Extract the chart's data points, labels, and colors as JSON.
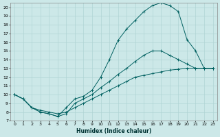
{
  "xlabel": "Humidex (Indice chaleur)",
  "xlim": [
    -0.5,
    23.5
  ],
  "ylim": [
    7,
    20.5
  ],
  "xticks": [
    0,
    1,
    2,
    3,
    4,
    5,
    6,
    7,
    8,
    9,
    10,
    11,
    12,
    13,
    14,
    15,
    16,
    17,
    18,
    19,
    20,
    21,
    22,
    23
  ],
  "yticks": [
    7,
    8,
    9,
    10,
    11,
    12,
    13,
    14,
    15,
    16,
    17,
    18,
    19,
    20
  ],
  "bg_color": "#cce8e8",
  "line_color": "#006060",
  "grid_color": "#b0d4d4",
  "lines": [
    {
      "x": [
        0,
        1,
        2,
        3,
        4,
        5,
        6,
        7,
        8,
        9,
        10,
        11,
        12,
        13,
        14,
        15,
        16,
        17,
        18,
        19,
        20,
        21,
        22,
        23
      ],
      "y": [
        10,
        9.5,
        8.5,
        8.2,
        8.0,
        7.8,
        8.0,
        8.5,
        9.0,
        9.5,
        10.0,
        10.5,
        11.0,
        11.5,
        12.0,
        12.2,
        12.4,
        12.6,
        12.8,
        12.9,
        13.0,
        13.0,
        13.0,
        13.0
      ]
    },
    {
      "x": [
        0,
        1,
        2,
        3,
        4,
        5,
        6,
        7,
        8,
        9,
        10,
        11,
        12,
        13,
        14,
        15,
        16,
        17,
        18,
        19,
        20,
        21,
        22,
        23
      ],
      "y": [
        10,
        9.5,
        8.5,
        8.0,
        7.8,
        7.5,
        7.8,
        9.0,
        9.5,
        10.0,
        10.8,
        11.5,
        12.3,
        13.0,
        13.8,
        14.5,
        15.0,
        15.0,
        14.5,
        14.0,
        13.5,
        13.0,
        13.0,
        13.0
      ]
    },
    {
      "x": [
        0,
        1,
        2,
        3,
        4,
        5,
        6,
        7,
        8,
        9,
        10,
        11,
        12,
        13,
        14,
        15,
        16,
        17,
        18,
        19,
        20,
        21,
        22,
        23
      ],
      "y": [
        10,
        9.5,
        8.5,
        8.0,
        7.8,
        7.5,
        8.5,
        9.5,
        9.8,
        10.5,
        12.0,
        14.0,
        16.2,
        17.5,
        18.5,
        19.5,
        20.2,
        20.5,
        20.2,
        19.5,
        16.3,
        15.0,
        13.0,
        13.0
      ]
    }
  ]
}
